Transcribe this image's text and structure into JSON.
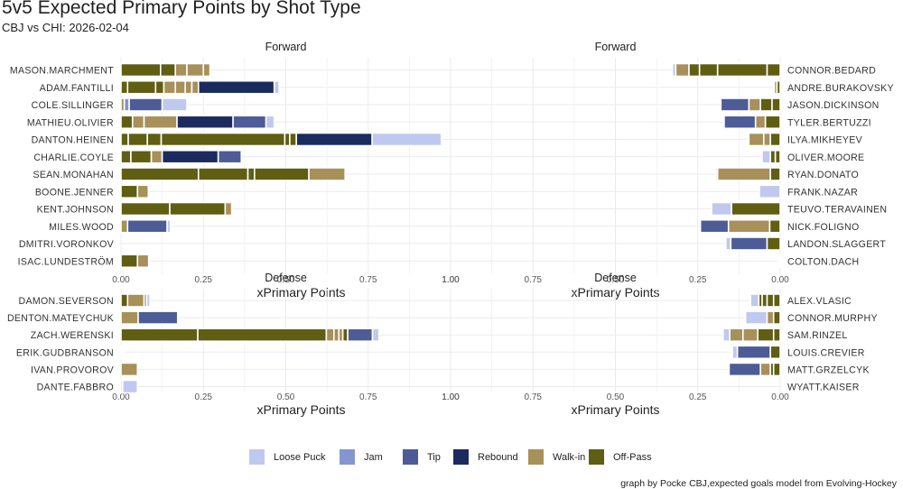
{
  "title": "5v5 Expected Primary Points by Shot Type",
  "subtitle": "CBJ vs CHI: 2026-02-04",
  "caption": "graph by Pocke CBJ,expected goals model from Evolving-Hockey",
  "chart_data": {
    "type": "bar",
    "orientation": "horizontal",
    "stacked": true,
    "xlabel": "xPrimary Points",
    "xlim": [
      0,
      1.0
    ],
    "ticks": [
      "0.00",
      "0.25",
      "0.50",
      "0.75",
      "1.00"
    ],
    "legend_position": "bottom",
    "legend": [
      {
        "name": "Loose Puck",
        "color": "#BFC9F0"
      },
      {
        "name": "Jam",
        "color": "#8595CF"
      },
      {
        "name": "Tip",
        "color": "#4D5C96"
      },
      {
        "name": "Rebound",
        "color": "#1C2B5E"
      },
      {
        "name": "Walk-in",
        "color": "#A8905A"
      },
      {
        "name": "Off-Pass",
        "color": "#5F5E12"
      }
    ],
    "panels": [
      {
        "team": "CBJ",
        "group": "Forward",
        "direction": "right",
        "players": [
          {
            "name": "MASON.MARCHMENT",
            "segments": [
              [
                "Off-Pass",
                0.12
              ],
              [
                "Off-Pass",
                0.045
              ],
              [
                "Walk-in",
                0.035
              ],
              [
                "Walk-in",
                0.05
              ],
              [
                "Walk-in",
                0.02
              ]
            ]
          },
          {
            "name": "ADAM.FANTILLI",
            "segments": [
              [
                "Off-Pass",
                0.02
              ],
              [
                "Off-Pass",
                0.085
              ],
              [
                "Off-Pass",
                0.025
              ],
              [
                "Walk-in",
                0.035
              ],
              [
                "Walk-in",
                0.03
              ],
              [
                "Walk-in",
                0.02
              ],
              [
                "Walk-in",
                0.02
              ],
              [
                "Rebound",
                0.23
              ],
              [
                "Loose Puck",
                0.015
              ]
            ]
          },
          {
            "name": "COLE.SILLINGER",
            "segments": [
              [
                "Walk-in",
                0.01
              ],
              [
                "Jam",
                0.015
              ],
              [
                "Tip",
                0.1
              ],
              [
                "Loose Puck",
                0.075
              ]
            ]
          },
          {
            "name": "MATHIEU.OLIVIER",
            "segments": [
              [
                "Off-Pass",
                0.035
              ],
              [
                "Walk-in",
                0.035
              ],
              [
                "Walk-in",
                0.1
              ],
              [
                "Rebound",
                0.17
              ],
              [
                "Tip",
                0.1
              ],
              [
                "Loose Puck",
                0.025
              ]
            ]
          },
          {
            "name": "DANTON.HEINEN",
            "segments": [
              [
                "Off-Pass",
                0.022
              ],
              [
                "Off-Pass",
                0.058
              ],
              [
                "Off-Pass",
                0.042
              ],
              [
                "Off-Pass",
                0.375
              ],
              [
                "Off-Pass",
                0.015
              ],
              [
                "Off-Pass",
                0.02
              ],
              [
                "Rebound",
                0.23
              ],
              [
                "Loose Puck",
                0.21
              ]
            ]
          },
          {
            "name": "CHARLIE.COYLE",
            "segments": [
              [
                "Off-Pass",
                0.03
              ],
              [
                "Off-Pass",
                0.062
              ],
              [
                "Walk-in",
                0.033
              ],
              [
                "Rebound",
                0.17
              ],
              [
                "Tip",
                0.07
              ]
            ]
          },
          {
            "name": "SEAN.MONAHAN",
            "segments": [
              [
                "Off-Pass",
                0.235
              ],
              [
                "Off-Pass",
                0.15
              ],
              [
                "Off-Pass",
                0.02
              ],
              [
                "Off-Pass",
                0.165
              ],
              [
                "Walk-in",
                0.11
              ]
            ]
          },
          {
            "name": "BOONE.JENNER",
            "segments": [
              [
                "Off-Pass",
                0.05
              ],
              [
                "Walk-in",
                0.033
              ]
            ]
          },
          {
            "name": "KENT.JOHNSON",
            "segments": [
              [
                "Off-Pass",
                0.148
              ],
              [
                "Off-Pass",
                0.168
              ],
              [
                "Walk-in",
                0.02
              ]
            ]
          },
          {
            "name": "MILES.WOOD",
            "segments": [
              [
                "Walk-in",
                0.02
              ],
              [
                "Tip",
                0.12
              ],
              [
                "Loose Puck",
                0.01
              ]
            ]
          },
          {
            "name": "DMITRI.VORONKOV",
            "segments": []
          },
          {
            "name": "ISAC.LUNDESTRÖM",
            "segments": [
              [
                "Off-Pass",
                0.05
              ],
              [
                "Walk-in",
                0.034
              ]
            ]
          }
        ]
      },
      {
        "team": "CHI",
        "group": "Forward",
        "direction": "left",
        "players": [
          {
            "name": "CONNOR.BEDARD",
            "segments": [
              [
                "Off-Pass",
                0.04
              ],
              [
                "Off-Pass",
                0.15
              ],
              [
                "Off-Pass",
                0.055
              ],
              [
                "Off-Pass",
                0.032
              ],
              [
                "Walk-in",
                0.04
              ],
              [
                "Loose Puck",
                0.01
              ]
            ]
          },
          {
            "name": "ANDRE.BURAKOVSKY",
            "segments": [
              [
                "Off-Pass",
                0.01
              ],
              [
                "Walk-in",
                0.008
              ]
            ]
          },
          {
            "name": "JASON.DICKINSON",
            "segments": [
              [
                "Off-Pass",
                0.025
              ],
              [
                "Off-Pass",
                0.035
              ],
              [
                "Walk-in",
                0.035
              ],
              [
                "Tip",
                0.085
              ]
            ]
          },
          {
            "name": "TYLER.BERTUZZI",
            "segments": [
              [
                "Off-Pass",
                0.045
              ],
              [
                "Walk-in",
                0.03
              ],
              [
                "Tip",
                0.095
              ]
            ]
          },
          {
            "name": "ILYA.MIKHEYEV",
            "segments": [
              [
                "Off-Pass",
                0.03
              ],
              [
                "Walk-in",
                0.02
              ],
              [
                "Walk-in",
                0.045
              ]
            ]
          },
          {
            "name": "OLIVER.MOORE",
            "segments": [
              [
                "Off-Pass",
                0.015
              ],
              [
                "Off-Pass",
                0.015
              ],
              [
                "Loose Puck",
                0.025
              ]
            ]
          },
          {
            "name": "RYAN.DONATO",
            "segments": [
              [
                "Off-Pass",
                0.03
              ],
              [
                "Walk-in",
                0.16
              ],
              [
                "Loose Puck",
                0.005
              ]
            ]
          },
          {
            "name": "FRANK.NAZAR",
            "segments": [
              [
                "Loose Puck",
                0.063
              ]
            ]
          },
          {
            "name": "TEUVO.TERAVAINEN",
            "segments": [
              [
                "Off-Pass",
                0.148
              ],
              [
                "Loose Puck",
                0.06
              ]
            ]
          },
          {
            "name": "NICK.FOLIGNO",
            "segments": [
              [
                "Off-Pass",
                0.032
              ],
              [
                "Walk-in",
                0.125
              ],
              [
                "Tip",
                0.085
              ]
            ]
          },
          {
            "name": "LANDON.SLAGGERT",
            "segments": [
              [
                "Off-Pass",
                0.04
              ],
              [
                "Tip",
                0.11
              ],
              [
                "Loose Puck",
                0.015
              ]
            ]
          },
          {
            "name": "COLTON.DACH",
            "segments": [
              [
                "Off-Pass",
                0.003
              ],
              [
                "Walk-in",
                0.004
              ]
            ]
          }
        ]
      },
      {
        "team": "CBJ",
        "group": "Defense",
        "direction": "right",
        "players": [
          {
            "name": "DAMON.SEVERSON",
            "segments": [
              [
                "Off-Pass",
                0.02
              ],
              [
                "Walk-in",
                0.05
              ],
              [
                "Walk-in",
                0.008
              ],
              [
                "Loose Puck",
                0.01
              ]
            ]
          },
          {
            "name": "DENTON.MATEYCHUK",
            "segments": [
              [
                "Walk-in",
                0.052
              ],
              [
                "Tip",
                0.12
              ]
            ]
          },
          {
            "name": "ZACH.WERENSKI",
            "segments": [
              [
                "Off-Pass",
                0.233
              ],
              [
                "Off-Pass",
                0.39
              ],
              [
                "Walk-in",
                0.023
              ],
              [
                "Walk-in",
                0.015
              ],
              [
                "Walk-in",
                0.012
              ],
              [
                "Off-Pass",
                0.015
              ],
              [
                "Tip",
                0.075
              ],
              [
                "Loose Puck",
                0.02
              ]
            ]
          },
          {
            "name": "ERIK.GUDBRANSON",
            "segments": [
              [
                "Walk-in",
                0.003
              ],
              [
                "Loose Puck",
                0.004
              ]
            ]
          },
          {
            "name": "IVAN.PROVOROV",
            "segments": [
              [
                "Walk-in",
                0.05
              ]
            ]
          },
          {
            "name": "DANTE.FABBRO",
            "segments": [
              [
                "Walk-in",
                0.005
              ],
              [
                "Loose Puck",
                0.045
              ]
            ]
          }
        ]
      },
      {
        "team": "CHI",
        "group": "Defense",
        "direction": "left",
        "players": [
          {
            "name": "ALEX.VLASIC",
            "segments": [
              [
                "Off-Pass",
                0.02
              ],
              [
                "Off-Pass",
                0.02
              ],
              [
                "Off-Pass",
                0.015
              ],
              [
                "Off-Pass",
                0.01
              ],
              [
                "Loose Puck",
                0.025
              ]
            ]
          },
          {
            "name": "CONNOR.MURPHY",
            "segments": [
              [
                "Off-Pass",
                0.02
              ],
              [
                "Walk-in",
                0.02
              ],
              [
                "Loose Puck",
                0.065
              ]
            ]
          },
          {
            "name": "SAM.RINZEL",
            "segments": [
              [
                "Off-Pass",
                0.02
              ],
              [
                "Off-Pass",
                0.048
              ],
              [
                "Walk-in",
                0.045
              ],
              [
                "Walk-in",
                0.04
              ],
              [
                "Loose Puck",
                0.02
              ]
            ]
          },
          {
            "name": "LOUIS.CREVIER",
            "segments": [
              [
                "Off-Pass",
                0.03
              ],
              [
                "Tip",
                0.1
              ],
              [
                "Loose Puck",
                0.015
              ]
            ]
          },
          {
            "name": "MATT.GRZELCYK",
            "segments": [
              [
                "Off-Pass",
                0.02
              ],
              [
                "Off-Pass",
                0.01
              ],
              [
                "Walk-in",
                0.03
              ],
              [
                "Tip",
                0.095
              ]
            ]
          },
          {
            "name": "WYATT.KAISER",
            "segments": []
          }
        ]
      }
    ]
  }
}
